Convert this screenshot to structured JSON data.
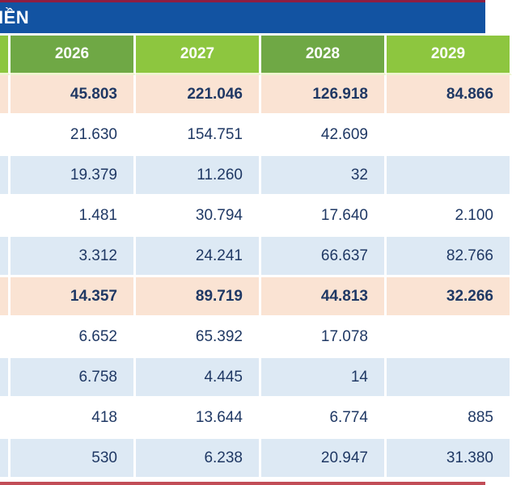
{
  "banner": {
    "title": "IỀN"
  },
  "table": {
    "columns": [
      "2026",
      "2027",
      "2028",
      "2029"
    ],
    "rows": [
      {
        "style": "highlight",
        "values": [
          "45.803",
          "221.046",
          "126.918",
          "84.866"
        ]
      },
      {
        "style": "plain",
        "values": [
          "21.630",
          "154.751",
          "42.609",
          ""
        ]
      },
      {
        "style": "shade",
        "values": [
          "19.379",
          "11.260",
          "32",
          ""
        ]
      },
      {
        "style": "plain",
        "values": [
          "1.481",
          "30.794",
          "17.640",
          "2.100"
        ]
      },
      {
        "style": "shade",
        "values": [
          "3.312",
          "24.241",
          "66.637",
          "82.766"
        ]
      },
      {
        "style": "highlight",
        "values": [
          "14.357",
          "89.719",
          "44.813",
          "32.266"
        ]
      },
      {
        "style": "plain",
        "values": [
          "6.652",
          "65.392",
          "17.078",
          ""
        ]
      },
      {
        "style": "shade",
        "values": [
          "6.758",
          "4.445",
          "14",
          ""
        ]
      },
      {
        "style": "plain",
        "values": [
          "418",
          "13.644",
          "6.774",
          "885"
        ]
      },
      {
        "style": "shade",
        "values": [
          "530",
          "6.238",
          "20.947",
          "31.380"
        ]
      }
    ]
  },
  "chart_data": {
    "type": "table",
    "title": "IỀN (banner title, left-cropped)",
    "columns": [
      "2026",
      "2027",
      "2028",
      "2029"
    ],
    "rows": [
      {
        "emphasis": "total",
        "values": [
          "45.803",
          "221.046",
          "126.918",
          "84.866"
        ]
      },
      {
        "emphasis": "normal",
        "values": [
          "21.630",
          "154.751",
          "42.609",
          ""
        ]
      },
      {
        "emphasis": "normal",
        "values": [
          "19.379",
          "11.260",
          "32",
          ""
        ]
      },
      {
        "emphasis": "normal",
        "values": [
          "1.481",
          "30.794",
          "17.640",
          "2.100"
        ]
      },
      {
        "emphasis": "normal",
        "values": [
          "3.312",
          "24.241",
          "66.637",
          "82.766"
        ]
      },
      {
        "emphasis": "total",
        "values": [
          "14.357",
          "89.719",
          "44.813",
          "32.266"
        ]
      },
      {
        "emphasis": "normal",
        "values": [
          "6.652",
          "65.392",
          "17.078",
          ""
        ]
      },
      {
        "emphasis": "normal",
        "values": [
          "6.758",
          "4.445",
          "14",
          ""
        ]
      },
      {
        "emphasis": "normal",
        "values": [
          "418",
          "13.644",
          "6.774",
          "885"
        ]
      },
      {
        "emphasis": "normal",
        "values": [
          "530",
          "6.238",
          "20.947",
          "31.380"
        ]
      }
    ],
    "layout": {
      "row_label_column_cropped_left": true,
      "last_column_cropped_right": true
    }
  },
  "colors": {
    "top_line": "#8e1e43",
    "banner_blue": "#1253a2",
    "header_green_dark": "#6fa845",
    "header_green_light": "#8dc63f",
    "row_highlight": "#fae3d3",
    "row_shade": "#dde9f4",
    "text_navy": "#1f3864",
    "bottom_line": "#c24d57"
  }
}
